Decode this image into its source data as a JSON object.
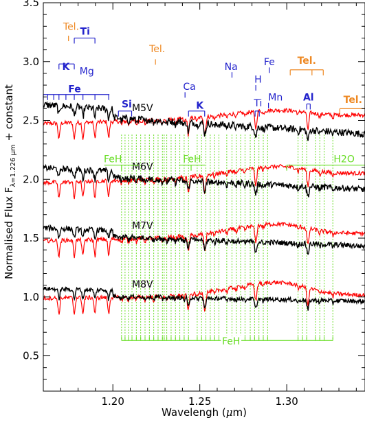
{
  "chart_data": {
    "type": "line",
    "xlabel_main": "Wavelengh (",
    "xlabel_mu": "μ",
    "xlabel_tail": "m)",
    "ylabel_main": "Normalised Flux F",
    "ylabel_sub": "λ=1.226 μm",
    "ylabel_tail": " + constant",
    "xlim": [
      1.16,
      1.345
    ],
    "ylim": [
      0.2,
      3.5
    ],
    "x_ticks": [
      1.2,
      1.25,
      1.3
    ],
    "x_tick_labels": [
      "1.20",
      "1.25",
      "1.30"
    ],
    "y_ticks": [
      0.5,
      1.0,
      1.5,
      2.0,
      2.5,
      3.0,
      3.5
    ],
    "y_tick_labels": [
      "0.5",
      "1.0",
      "1.5",
      "2.0",
      "2.5",
      "3.0",
      "3.5"
    ],
    "colors": {
      "observed": "#000000",
      "model": "#ff0000",
      "feh": "#66dd22",
      "atom": "#2222cc",
      "tel": "#ee8822"
    },
    "series": [
      {
        "label": "M5V",
        "offset": 2.5,
        "slope_obs": -0.95,
        "slope_mod": 0.4,
        "label_x": 1.211,
        "label_y": 2.58
      },
      {
        "label": "M6V",
        "offset": 2.0,
        "slope_obs": -0.7,
        "slope_mod": 0.45,
        "label_x": 1.211,
        "label_y": 2.08
      },
      {
        "label": "M7V",
        "offset": 1.5,
        "slope_obs": -0.55,
        "slope_mod": 0.35,
        "label_x": 1.211,
        "label_y": 1.58
      },
      {
        "label": "M8V",
        "offset": 1.0,
        "slope_obs": -0.3,
        "slope_mod": 0.15,
        "label_x": 1.211,
        "label_y": 1.08
      }
    ],
    "absorption_lines": [
      1.169,
      1.1778,
      1.1828,
      1.1897,
      1.1976,
      1.2434,
      1.2528,
      1.2823,
      1.3123
    ],
    "feh_lines": [
      1.205,
      1.207,
      1.209,
      1.211,
      1.2135,
      1.216,
      1.2185,
      1.221,
      1.2235,
      1.226,
      1.2285,
      1.2295,
      1.231,
      1.2335,
      1.236,
      1.2385,
      1.241,
      1.2435,
      1.2485,
      1.251,
      1.2535,
      1.256,
      1.2585,
      1.261,
      1.2655,
      1.2685,
      1.271,
      1.2735,
      1.276,
      1.279,
      1.2815,
      1.284,
      1.2865,
      1.289,
      1.3065,
      1.309,
      1.3115,
      1.3165,
      1.319,
      1.3215,
      1.3265
    ],
    "feh_bar": {
      "label": "FeH",
      "x1": 1.205,
      "x2": 1.3265,
      "y": 0.63,
      "label_x": 1.268
    },
    "upper_feh_brackets": [
      {
        "label": "FeH",
        "x1": 1.195,
        "x2": 1.215,
        "y": 2.12,
        "tick_x": 1.205,
        "label_x": 1.2
      },
      {
        "label": "FeH",
        "x1": 1.238,
        "x2": 1.253,
        "y": 2.12,
        "tick_x": 1.245,
        "label_x": 1.2455
      },
      {
        "label": "H2O",
        "x1": 1.3,
        "x2": 1.345,
        "y": 2.12,
        "tick_x": 1.3,
        "label_x": 1.333
      }
    ],
    "atom_labels": [
      {
        "label": "Fe",
        "x": 1.178,
        "y": 2.74
      },
      {
        "label": "K",
        "x": 1.173,
        "y": 2.93
      },
      {
        "label": "Mg",
        "x": 1.185,
        "y": 2.89
      },
      {
        "label": "Ti",
        "x": 1.184,
        "y": 3.23
      },
      {
        "label": "Si",
        "x": 1.208,
        "y": 2.61
      },
      {
        "label": "Ca",
        "x": 1.244,
        "y": 2.76
      },
      {
        "label": "K",
        "x": 1.25,
        "y": 2.6
      },
      {
        "label": "Na",
        "x": 1.268,
        "y": 2.93
      },
      {
        "label": "H",
        "x": 1.2835,
        "y": 2.82
      },
      {
        "label": "Fe",
        "x": 1.29,
        "y": 2.97
      },
      {
        "label": "Ti",
        "x": 1.2835,
        "y": 2.62
      },
      {
        "label": "Mn",
        "x": 1.2935,
        "y": 2.67
      },
      {
        "label": "Al",
        "x": 1.3125,
        "y": 2.67
      }
    ],
    "atom_brackets": [
      {
        "x1": 1.16,
        "x2": 1.198,
        "y": 2.72,
        "ticks": [
          1.16,
          1.1625,
          1.166,
          1.169,
          1.173,
          1.1778,
          1.1828,
          1.1897,
          1.1976
        ]
      },
      {
        "x1": 1.169,
        "x2": 1.1778,
        "y": 2.98,
        "ticks": [
          1.169,
          1.1778
        ]
      },
      {
        "x1": 1.1778,
        "x2": 1.1897,
        "y": 3.2,
        "ticks": [
          1.1778,
          1.1897
        ]
      },
      {
        "x1": 1.2032,
        "x2": 1.2108,
        "y": 2.58,
        "ticks": [
          1.2032,
          1.2108
        ]
      },
      {
        "x1": 1.2435,
        "x2": 1.2528,
        "y": 2.58,
        "ticks": [
          1.2435,
          1.2528
        ]
      },
      {
        "x1": 1.2415,
        "x2": 1.2415,
        "y": 2.74,
        "ticks": [
          1.2415
        ]
      },
      {
        "x1": 1.2685,
        "x2": 1.2685,
        "y": 2.91,
        "ticks": [
          1.2685
        ]
      },
      {
        "x1": 1.2822,
        "x2": 1.2822,
        "y": 2.8,
        "ticks": [
          1.2822
        ]
      },
      {
        "x1": 1.29,
        "x2": 1.29,
        "y": 2.95,
        "ticks": [
          1.29
        ]
      },
      {
        "x1": 1.2818,
        "x2": 1.2842,
        "y": 2.58,
        "ticks": [
          1.2818,
          1.2842
        ]
      },
      {
        "x1": 1.2895,
        "x2": 1.2895,
        "y": 2.65,
        "ticks": [
          1.2895
        ]
      },
      {
        "x1": 1.3115,
        "x2": 1.3135,
        "y": 2.64,
        "ticks": [
          1.3115,
          1.3135
        ]
      }
    ],
    "tel_labels": [
      {
        "label": "Tel.",
        "x": 1.176,
        "y": 3.27
      },
      {
        "label": "Tel.",
        "x": 1.2255,
        "y": 3.08
      },
      {
        "label": "Tel.",
        "x": 1.3115,
        "y": 2.98
      },
      {
        "label": "Tel.",
        "x": 1.338,
        "y": 2.65
      }
    ],
    "tel_brackets": [
      {
        "x1": 1.1745,
        "x2": 1.1745,
        "y": 3.22,
        "ticks": [
          1.1745
        ]
      },
      {
        "x1": 1.2245,
        "x2": 1.2245,
        "y": 3.02,
        "ticks": [
          1.2245
        ]
      },
      {
        "x1": 1.302,
        "x2": 1.321,
        "y": 2.93,
        "ticks": [
          1.302,
          1.3145,
          1.321
        ]
      },
      {
        "x1": 1.3305,
        "x2": 1.345,
        "y": 2.6,
        "ticks": [
          1.3305
        ]
      }
    ]
  }
}
